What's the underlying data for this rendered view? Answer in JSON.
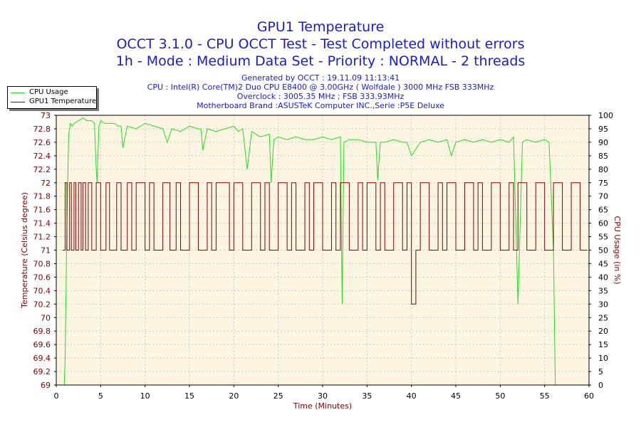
{
  "titles": {
    "line1": "GPU1 Temperature",
    "line2": "OCCT 3.1.0 - CPU OCCT Test - Test Completed without errors",
    "line3": "1h - Mode : Medium Data Set - Priority : NORMAL - 2 threads"
  },
  "meta": {
    "generated": "Generated by OCCT : 19.11.09 11:13:41",
    "cpu": "CPU : Intel(R) Core(TM)2 Duo CPU E8400 @ 3.00GHz ( Wolfdale ) 3000 MHz FSB 333MHz",
    "overclock": "Overclock : 3005.35 MHz ; FSB 333.93MHz",
    "board": "Motherboard Brand :ASUSTeK Computer INC.,Serie :P5E Deluxe"
  },
  "colors": {
    "cpu": "#22dd22",
    "temp": "#880000",
    "plot_bg": "#fbf5e2",
    "axis_text": "#800000",
    "title": "#1a1ad6"
  },
  "chart_data": {
    "type": "line",
    "xlabel": "Time (Minutes)",
    "ylabel": "Temperature (Celsius degree)",
    "y2label": "CPU Usage (in %)",
    "xlim": [
      0,
      60
    ],
    "ylim": [
      69,
      73
    ],
    "y2lim": [
      0,
      100
    ],
    "xticks": [
      "0",
      "5",
      "10",
      "15",
      "20",
      "25",
      "30",
      "35",
      "40",
      "45",
      "50",
      "55",
      "60"
    ],
    "yticks": [
      "69",
      "69.2",
      "69.4",
      "69.6",
      "69.8",
      "70",
      "70.2",
      "70.4",
      "70.6",
      "70.8",
      "71",
      "71.2",
      "71.4",
      "71.6",
      "71.8",
      "72",
      "72.2",
      "72.4",
      "72.6",
      "72.8",
      "73"
    ],
    "y2ticks": [
      "0",
      "5",
      "10",
      "15",
      "20",
      "25",
      "30",
      "35",
      "40",
      "45",
      "50",
      "55",
      "60",
      "65",
      "70",
      "75",
      "80",
      "85",
      "90",
      "95",
      "100"
    ],
    "grid": true,
    "legend_position": "top-left",
    "series": [
      {
        "name": "CPU Usage",
        "axis": "right",
        "x": [
          0.9,
          1.0,
          1.2,
          1.4,
          1.6,
          1.8,
          2.0,
          2.5,
          3.0,
          3.5,
          4.0,
          4.3,
          4.5,
          4.6,
          4.8,
          5.0,
          5.5,
          6.0,
          6.5,
          7.0,
          7.3,
          7.5,
          8.0,
          9.0,
          10.0,
          11.0,
          12.0,
          12.5,
          13.0,
          14.0,
          15.0,
          16.0,
          16.3,
          16.5,
          17.0,
          18.0,
          19.0,
          20.0,
          20.5,
          21.0,
          21.5,
          21.8,
          22.0,
          22.5,
          23.0,
          24.0,
          24.2,
          24.5,
          25.0,
          26.0,
          27.0,
          28.0,
          29.0,
          30.0,
          31.0,
          32.0,
          32.2,
          32.4,
          33.0,
          34.0,
          35.0,
          36.0,
          36.2,
          36.5,
          37.0,
          38.0,
          39.0,
          39.5,
          40.0,
          41.0,
          42.0,
          43.0,
          44.0,
          44.5,
          45.0,
          46.0,
          47.0,
          48.0,
          49.0,
          50.0,
          51.0,
          51.5,
          52.0,
          52.5,
          53.0,
          54.0,
          55.0,
          55.5,
          56.0,
          56.2
        ],
        "values": [
          0,
          10,
          60,
          93,
          97,
          96,
          97,
          98,
          99,
          98,
          98,
          97,
          80,
          75,
          96,
          98,
          97,
          97,
          97,
          96,
          96,
          88,
          96,
          95,
          97,
          96,
          95,
          90,
          95,
          94,
          96,
          95,
          95,
          87,
          95,
          94,
          95,
          96,
          94,
          95,
          80,
          88,
          94,
          93,
          92,
          93,
          75,
          91,
          92,
          91,
          92,
          91,
          91,
          92,
          91,
          92,
          30,
          90,
          91,
          91,
          90,
          90,
          76,
          90,
          90,
          91,
          90,
          90,
          85,
          90,
          91,
          90,
          91,
          85,
          90,
          91,
          90,
          91,
          90,
          91,
          90,
          92,
          30,
          90,
          91,
          90,
          91,
          90,
          50,
          0
        ]
      },
      {
        "name": "GPU1 Temperature",
        "axis": "left",
        "x": [
          0.7,
          1.0,
          1.2,
          1.5,
          1.7,
          2.0,
          2.2,
          2.5,
          2.8,
          3.0,
          3.3,
          3.6,
          4.0,
          4.5,
          5.0,
          5.6,
          6.0,
          6.8,
          7.3,
          8.0,
          8.5,
          9.0,
          10.0,
          10.5,
          11.0,
          12.0,
          12.8,
          13.5,
          14.0,
          15.0,
          16.0,
          17.0,
          17.5,
          18.0,
          19.5,
          20.0,
          21.0,
          22.0,
          23.0,
          23.5,
          24.0,
          25.0,
          26.0,
          26.5,
          27.0,
          28.0,
          28.5,
          29.0,
          30.0,
          31.0,
          31.5,
          32.0,
          33.0,
          34.0,
          34.5,
          35.0,
          36.0,
          36.5,
          37.0,
          38.0,
          39.0,
          39.5,
          40.0,
          40.5,
          41.0,
          42.0,
          43.0,
          43.5,
          44.0,
          45.0,
          46.0,
          47.0,
          47.5,
          48.0,
          49.0,
          50.0,
          51.0,
          51.5,
          52.0,
          53.0,
          54.0,
          55.0,
          56.0,
          57.0,
          58.0,
          59.0,
          59.8
        ],
        "values": [
          71,
          72,
          71,
          72,
          71,
          72,
          71,
          72,
          71,
          72,
          71,
          72,
          71,
          72,
          71,
          72,
          71,
          72,
          71,
          72,
          71,
          72,
          71,
          72,
          71,
          72,
          71,
          72,
          71,
          72,
          71,
          72,
          71,
          72,
          71,
          72,
          71,
          72,
          71,
          72,
          71,
          72,
          71,
          72,
          71,
          72,
          71,
          72,
          71,
          72,
          71,
          72,
          71,
          72,
          71,
          72,
          71,
          72,
          71,
          72,
          71,
          72,
          70.2,
          71,
          72,
          71,
          72,
          71,
          72,
          71,
          72,
          71,
          72,
          71,
          72,
          71,
          72,
          71,
          72,
          71,
          72,
          71,
          72,
          71,
          72,
          71,
          71
        ]
      }
    ]
  }
}
